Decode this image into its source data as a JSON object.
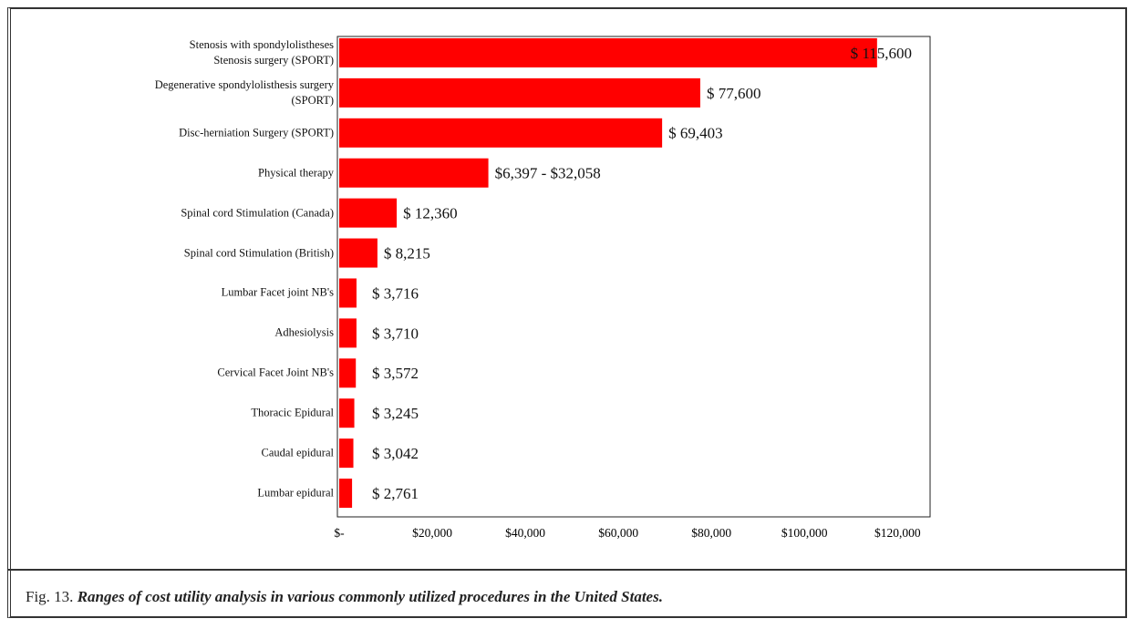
{
  "chart_data": {
    "type": "hbar",
    "categories": [
      "Stenosis with spondylolistheses\nStenosis surgery (SPORT)",
      "Degenerative spondylolisthesis surgery\n(SPORT)",
      "Disc-herniation Surgery (SPORT)",
      "Physical therapy",
      "Spinal cord Stimulation (Canada)",
      "Spinal cord Stimulation (British)",
      "Lumbar Facet joint NB's",
      "Adhesiolysis",
      "Cervical Facet Joint NB's",
      "Thoracic Epidural",
      "Caudal epidural",
      "Lumbar epidural"
    ],
    "values": [
      115600,
      77600,
      69403,
      32058,
      12360,
      8215,
      3716,
      3710,
      3572,
      3245,
      3042,
      2761
    ],
    "value_labels": [
      "$ 115,600",
      "$ 77,600",
      "$ 69,403",
      "$6,397 - $32,058",
      "$ 12,360",
      "$ 8,215",
      "$ 3,716",
      "$ 3,710",
      "$ 3,572",
      "$ 3,245",
      "$ 3,042",
      "$ 2,761"
    ],
    "color": "#ff0000",
    "xlim": [
      0,
      127000
    ],
    "xticks": [
      {
        "value": 0,
        "label": "$-"
      },
      {
        "value": 20000,
        "label": "$20,000"
      },
      {
        "value": 40000,
        "label": "$40,000"
      },
      {
        "value": 60000,
        "label": "$60,000"
      },
      {
        "value": 80000,
        "label": "$80,000"
      },
      {
        "value": 100000,
        "label": "$100,000"
      },
      {
        "value": 120000,
        "label": "$120,000"
      }
    ],
    "caption_label": "Fig. 13.",
    "caption": "Ranges of cost utility analysis in various commonly utilized procedures in the United States."
  }
}
